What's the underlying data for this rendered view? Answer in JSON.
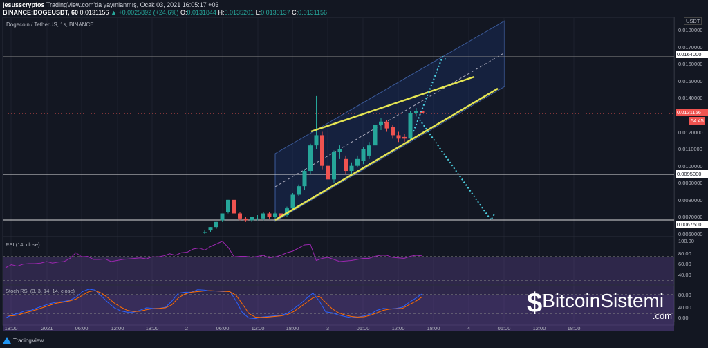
{
  "header": {
    "author": "jesusscryptos",
    "published": "TradingView.com'da yayınlanmış, Ocak 03, 2021 16:05:17 +03",
    "symbol": "BINANCE:DOGEUSDT, 60",
    "last": "0.0131156",
    "change": "▲ +0.0025892 (+24.6%)",
    "o_label": "O:",
    "o": "0.0131844",
    "h_label": "H:",
    "h": "0.0135201",
    "l_label": "L:",
    "l": "0.0130137",
    "c_label": "C:",
    "c": "0.0131156"
  },
  "pane": {
    "title": "Dogecoin / TetherUS, 1s, BINANCE",
    "currency": "USDT"
  },
  "price_axis": [
    "0.0180000",
    "0.0170000",
    "0.0160000",
    "0.0150000",
    "0.0140000",
    "0.0120000",
    "0.0110000",
    "0.0100000",
    "0.0090000",
    "0.0080000",
    "0.0070000",
    "0.0060000"
  ],
  "price_levels": {
    "l1": "0.0164000",
    "l2": "0.0095000",
    "l3": "0.0067500",
    "current": "0.0131156",
    "countdown": "54:45"
  },
  "rsi": {
    "title": "RSI (14, close)",
    "axis": [
      "100.00",
      "80.00",
      "60.00",
      "40.00"
    ],
    "values": [
      44,
      50,
      47,
      51,
      52,
      52,
      53,
      56,
      53,
      55,
      56,
      62,
      73,
      65,
      66,
      60,
      60,
      61,
      56,
      58,
      60,
      61,
      62,
      63,
      61,
      65,
      65,
      67,
      71,
      68,
      73,
      74,
      80,
      82,
      78,
      85,
      90,
      95,
      83,
      65,
      66,
      66,
      64,
      66,
      68,
      63,
      65,
      68,
      73,
      76,
      82,
      88,
      89,
      58,
      62,
      64,
      60,
      56,
      57,
      58,
      60,
      62,
      62,
      66,
      68,
      68,
      64,
      63,
      62,
      66,
      68,
      67
    ]
  },
  "stoch": {
    "title": "Stoch RSI (3, 3, 14, 14, close)",
    "axis": [
      "80.00",
      "40.00",
      "0.00"
    ],
    "k": [
      5,
      15,
      20,
      28,
      30,
      38,
      45,
      52,
      56,
      58,
      62,
      72,
      90,
      98,
      95,
      75,
      55,
      38,
      28,
      24,
      24,
      30,
      38,
      36,
      36,
      40,
      60,
      85,
      88,
      88,
      96,
      95,
      92,
      92,
      90,
      92,
      60,
      22,
      5,
      3,
      8,
      10,
      12,
      14,
      20,
      35,
      50,
      68,
      85,
      60,
      25,
      22,
      15,
      10,
      6,
      8,
      12,
      18,
      30,
      36,
      34,
      36,
      40,
      55,
      68,
      82
    ],
    "d": [
      15,
      12,
      15,
      22,
      27,
      33,
      40,
      47,
      53,
      56,
      60,
      66,
      78,
      90,
      93,
      85,
      70,
      53,
      40,
      30,
      26,
      27,
      32,
      35,
      36,
      38,
      48,
      70,
      82,
      88,
      90,
      92,
      93,
      92,
      91,
      90,
      78,
      50,
      20,
      8,
      7,
      8,
      10,
      12,
      16,
      26,
      40,
      55,
      70,
      75,
      55,
      35,
      22,
      15,
      10,
      8,
      9,
      14,
      22,
      30,
      34,
      35,
      36,
      48,
      58,
      72
    ]
  },
  "time_axis": [
    "18:00",
    "2021",
    "06:00",
    "12:00",
    "18:00",
    "2",
    "06:00",
    "12:00",
    "18:00",
    "3",
    "06:00",
    "12:00",
    "18:00",
    "4",
    "06:00",
    "12:00",
    "18:00"
  ],
  "candles": [
    [
      0.0061,
      0.0062,
      0.006,
      0.0061
    ],
    [
      0.0062,
      0.0064,
      0.0061,
      0.0064
    ],
    [
      0.0064,
      0.0067,
      0.0063,
      0.0067
    ],
    [
      0.0068,
      0.0072,
      0.0067,
      0.0072
    ],
    [
      0.0073,
      0.008,
      0.0072,
      0.008
    ],
    [
      0.008,
      0.0081,
      0.0071,
      0.0072
    ],
    [
      0.0072,
      0.0073,
      0.0068,
      0.0069
    ],
    [
      0.0069,
      0.007,
      0.0067,
      0.0068
    ],
    [
      0.0068,
      0.007,
      0.0067,
      0.007
    ],
    [
      0.0069,
      0.0071,
      0.0068,
      0.0069
    ],
    [
      0.0069,
      0.0073,
      0.0068,
      0.0072
    ],
    [
      0.0072,
      0.0073,
      0.0069,
      0.007
    ],
    [
      0.007,
      0.0073,
      0.0069,
      0.0072
    ],
    [
      0.0072,
      0.0073,
      0.0069,
      0.007
    ],
    [
      0.0071,
      0.0076,
      0.007,
      0.0075
    ],
    [
      0.0075,
      0.0084,
      0.0074,
      0.0083
    ],
    [
      0.0083,
      0.0089,
      0.0082,
      0.0088
    ],
    [
      0.0088,
      0.0098,
      0.0086,
      0.0097
    ],
    [
      0.0097,
      0.0113,
      0.0095,
      0.0112
    ],
    [
      0.0112,
      0.0141,
      0.011,
      0.0118
    ],
    [
      0.0118,
      0.012,
      0.0098,
      0.01
    ],
    [
      0.01,
      0.0103,
      0.0088,
      0.0092
    ],
    [
      0.0092,
      0.0109,
      0.009,
      0.0108
    ],
    [
      0.0108,
      0.0112,
      0.0104,
      0.011
    ],
    [
      0.0104,
      0.0106,
      0.0095,
      0.0097
    ],
    [
      0.0097,
      0.0102,
      0.0095,
      0.01
    ],
    [
      0.01,
      0.0106,
      0.0099,
      0.0104
    ],
    [
      0.0103,
      0.0111,
      0.0101,
      0.011
    ],
    [
      0.0106,
      0.0114,
      0.0104,
      0.0112
    ],
    [
      0.0112,
      0.0125,
      0.011,
      0.0124
    ],
    [
      0.0124,
      0.0128,
      0.0121,
      0.0126
    ],
    [
      0.0126,
      0.0127,
      0.012,
      0.0122
    ],
    [
      0.0123,
      0.0124,
      0.0116,
      0.0118
    ],
    [
      0.0118,
      0.012,
      0.0114,
      0.0116
    ],
    [
      0.0117,
      0.0119,
      0.0114,
      0.0116
    ],
    [
      0.0116,
      0.0132,
      0.0115,
      0.0131
    ],
    [
      0.0131,
      0.0134,
      0.0129,
      0.0132
    ],
    [
      0.0132,
      0.0135,
      0.013,
      0.0131
    ]
  ],
  "colors": {
    "up": "#26a69a",
    "down": "#ef5350",
    "trend": "#e5e552",
    "projection": "#4dd0e1",
    "rsi": "#9c27b0",
    "stoch_k": "#2962ff",
    "stoch_d": "#ff6d00"
  },
  "footer": {
    "brand": "TradingView",
    "watermark": "BitcoinSistemi",
    "watermark_domain": ".com"
  }
}
